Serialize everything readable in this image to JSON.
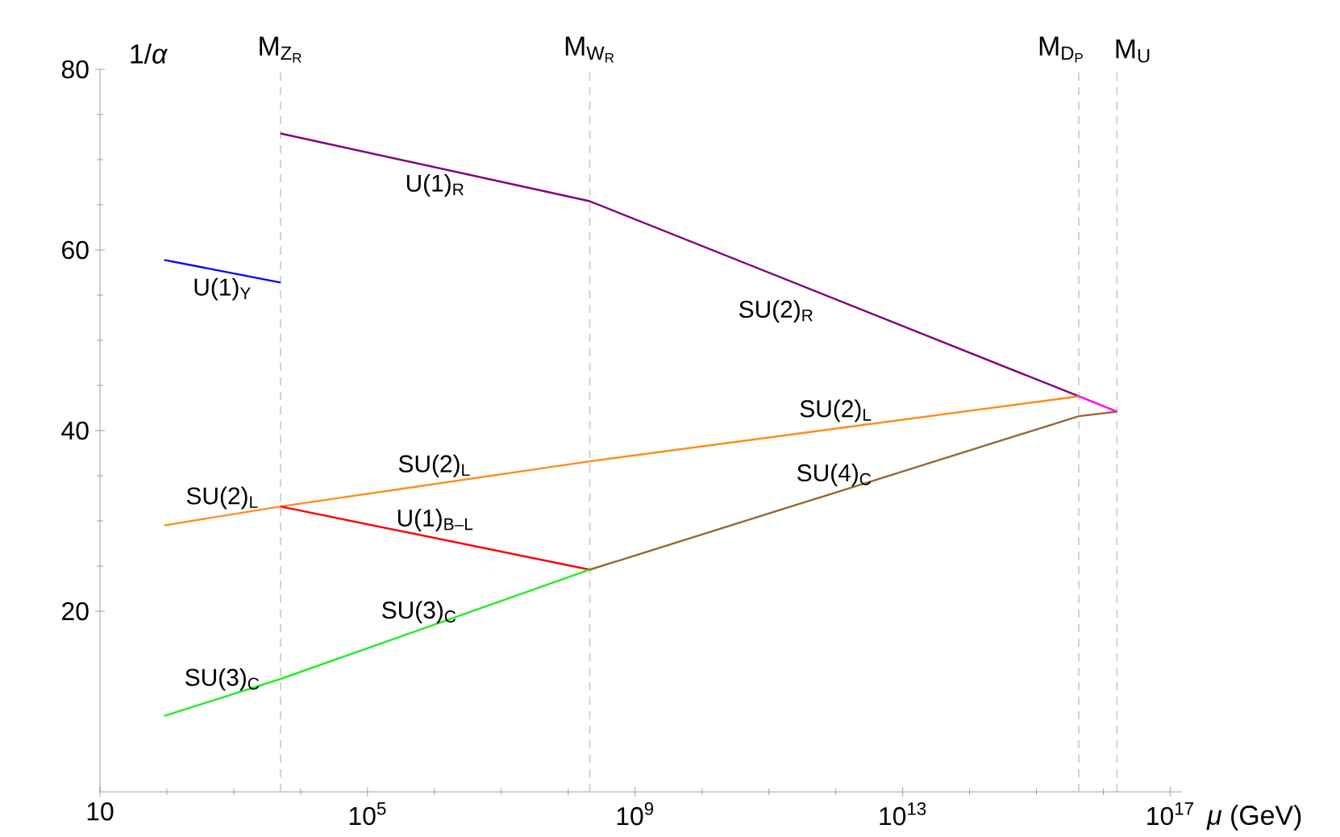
{
  "chart_data": {
    "type": "line",
    "log": "x",
    "xlabel": "*μ* (GeV)",
    "ylabel": "1/*α*",
    "xlim": [
      10,
      1.5e+17
    ],
    "ylim": [
      0,
      80
    ],
    "xticks": [
      10,
      {
        "value": 100000.0,
        "label": "10$^{5}$"
      },
      {
        "value": 1000000000.0,
        "label": "10$^{9}$"
      },
      {
        "value": 10000000000000.0,
        "label": "10$^{13}$"
      },
      {
        "value": 1e+17,
        "label": "10$^{17}$"
      }
    ],
    "yticks": [
      20,
      40,
      60,
      80
    ],
    "series": [
      {
        "name": "U(1)$_{Y}$",
        "color": "#0000ff",
        "x": [
          91.2,
          5000
        ],
        "values": [
          58.9,
          56.4
        ]
      },
      {
        "name": "U(1)$_{R}$",
        "color": "#800080",
        "x": [
          5000,
          210000000.0,
          4300000000000000.0
        ],
        "values": [
          72.9,
          65.4,
          43.8
        ]
      },
      {
        "name": "SU(2)$_{L}$",
        "color": "#ff8c1a",
        "x": [
          91.2,
          5000,
          210000000.0,
          4300000000000000.0
        ],
        "values": [
          29.5,
          31.6,
          36.6,
          43.8
        ]
      },
      {
        "name": "U(1)$_{B–L}$",
        "color": "#ff0000",
        "x": [
          5000,
          210000000.0
        ],
        "values": [
          31.6,
          24.6
        ]
      },
      {
        "name": "SU(3)$_{C}$",
        "color": "#22ee22",
        "x": [
          91.2,
          5000,
          210000000.0
        ],
        "values": [
          8.4,
          12.5,
          24.6
        ]
      },
      {
        "name": "SU(4)$_{C}$",
        "color": "#996633",
        "x": [
          210000000.0,
          4300000000000000.0,
          1.6e+16
        ],
        "values": [
          24.6,
          41.6,
          42.1
        ]
      },
      {
        "color": "#ff00ff",
        "x": [
          4300000000000000.0,
          1.6e+16
        ],
        "values": [
          43.8,
          42.1
        ]
      }
    ],
    "annotations": [
      {
        "text": "SU(2)$_{R}$",
        "x": 600000000000.0,
        "y": 55.2
      },
      {
        "text": "SU(2)$_{L}$",
        "x": 1000000.0,
        "y": 34.1
      },
      {
        "text": "SU(2)$_{L}$",
        "x": 1000000000000.0,
        "y": 40.2
      },
      {
        "text": "SU(3)$_{C}$",
        "x": 590000.0,
        "y": 17.9
      }
    ],
    "ref_lines": [
      {
        "axis": "x",
        "value": 5000,
        "label": "\\mathrm{M}_{\\mathrm{Z}_{\\mathrm{R}}}",
        "color": "#c8c8c8",
        "line_style": "dashed"
      },
      {
        "axis": "x",
        "value": 210000000.0,
        "label": "\\mathrm{M}_{\\mathrm{W}_{\\mathrm{R}}}",
        "color": "#c8c8c8",
        "line_style": "dashed"
      },
      {
        "axis": "x",
        "value": 4300000000000000.0,
        "label": "\\mathrm{M}_{\\mathrm{D}_{\\mathrm{P}}}",
        "color": "#c8c8c8",
        "line_style": "dashed"
      },
      {
        "axis": "x",
        "value": 1.6e+16,
        "label": "\\mathrm{M}_{\\mathrm{U}}",
        "color": "#c8c8c8",
        "line_style": "dashed"
      }
    ]
  }
}
